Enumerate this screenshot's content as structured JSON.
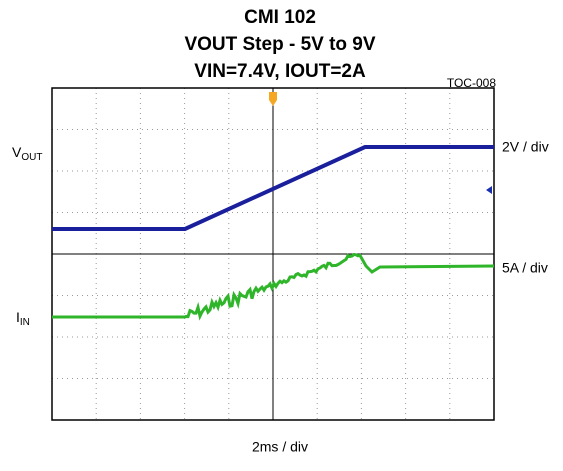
{
  "header": {
    "title": "CMI 102",
    "subtitle": "VOUT Step - 5V to 9V",
    "conditions": "VIN=7.4V, IOUT=2A",
    "figure_id": "TOC-008"
  },
  "channels": [
    {
      "label": "V",
      "label_sub": "OUT",
      "scale": "2V / div"
    },
    {
      "label": "I",
      "label_sub": "IN",
      "scale": "5A / div"
    }
  ],
  "timebase": "2ms / div"
}
